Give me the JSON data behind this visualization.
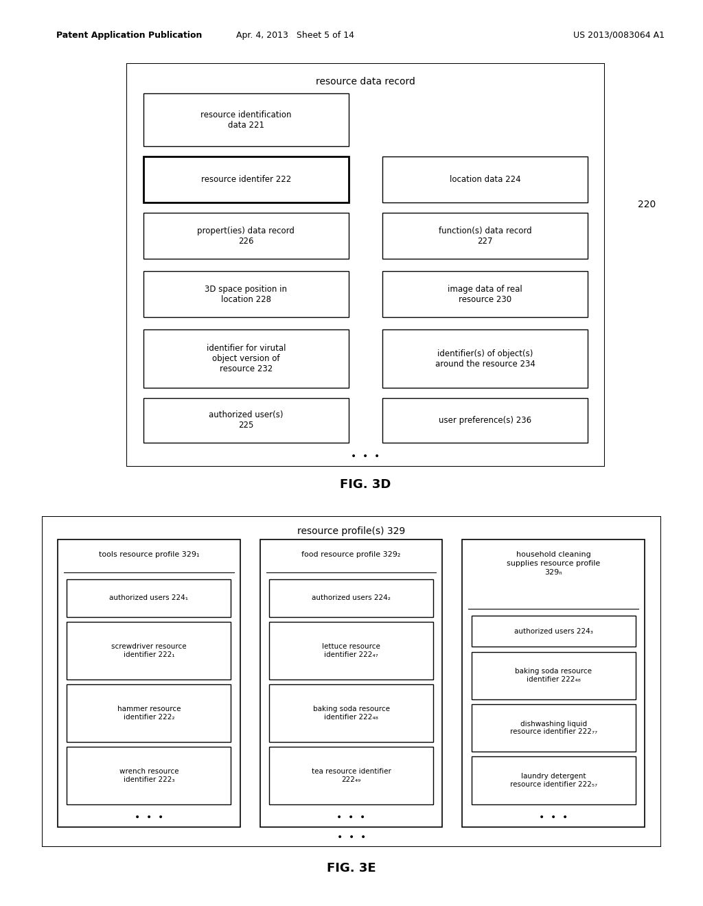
{
  "bg_color": "#ffffff",
  "header_left": "Patent Application Publication",
  "header_mid": "Apr. 4, 2013   Sheet 5 of 14",
  "header_right": "US 2013/0083064 A1",
  "fig3d_title": "resource data record",
  "fig3d_label": "220",
  "fig3d_caption": "FIG. 3D",
  "fig3d_boxes": [
    {
      "text": "resource identification\ndata 221",
      "col": 0,
      "row": 0,
      "rowspan": 1,
      "bold_border": false,
      "left_only": true
    },
    {
      "text": "resource identifer 222",
      "col": 0,
      "row": 1,
      "rowspan": 1,
      "bold_border": true,
      "left_only": true
    },
    {
      "text": "location data 224",
      "col": 1,
      "row": 1,
      "rowspan": 1,
      "bold_border": false,
      "left_only": false
    },
    {
      "text": "propert(ies) data record\n226",
      "col": 0,
      "row": 2,
      "rowspan": 1,
      "bold_border": false,
      "left_only": false
    },
    {
      "text": "function(s) data record\n227",
      "col": 1,
      "row": 2,
      "rowspan": 1,
      "bold_border": false,
      "left_only": false
    },
    {
      "text": "3D space position in\nlocation 228",
      "col": 0,
      "row": 3,
      "rowspan": 1,
      "bold_border": false,
      "left_only": false
    },
    {
      "text": "image data of real\nresource 230",
      "col": 1,
      "row": 3,
      "rowspan": 1,
      "bold_border": false,
      "left_only": false
    },
    {
      "text": "identifier for virutal\nobject version of\nresource 232",
      "col": 0,
      "row": 4,
      "rowspan": 1,
      "bold_border": false,
      "left_only": false
    },
    {
      "text": "identifier(s) of object(s)\naround the resource 234",
      "col": 1,
      "row": 4,
      "rowspan": 1,
      "bold_border": false,
      "left_only": false
    },
    {
      "text": "authorized user(s)\n225",
      "col": 0,
      "row": 5,
      "rowspan": 1,
      "bold_border": false,
      "left_only": false
    },
    {
      "text": "user preference(s) 236",
      "col": 1,
      "row": 5,
      "rowspan": 1,
      "bold_border": false,
      "left_only": false
    }
  ],
  "fig3e_title": "resource profile(s) 329",
  "fig3e_caption": "FIG. 3E",
  "col1_title": "tools resource profile 329₁",
  "col1_boxes": [
    {
      "text": "authorized users 224₁"
    },
    {
      "text": "screwdriver resource\nidentifier 222₁"
    },
    {
      "text": "hammer resource\nidentifier 222₂"
    },
    {
      "text": "wrench resource\nidentifier 222₃"
    }
  ],
  "col2_title": "food resource profile 329₂",
  "col2_boxes": [
    {
      "text": "authorized users 224₂"
    },
    {
      "text": "lettuce resource\nidentifier 222₄₇"
    },
    {
      "text": "baking soda resource\nidentifier 222₄₈"
    },
    {
      "text": "tea resource identifier\n222₄₉"
    }
  ],
  "col3_title": "household cleaning\nsupplies resource profile\n329ₙ",
  "col3_boxes": [
    {
      "text": "authorized users 224₃"
    },
    {
      "text": "baking soda resource\nidentifier 222₄₈"
    },
    {
      "text": "dishwashing liquid\nresource identifier 222₇₇"
    },
    {
      "text": "laundry detergent\nresource identifier 222₅₇"
    }
  ]
}
